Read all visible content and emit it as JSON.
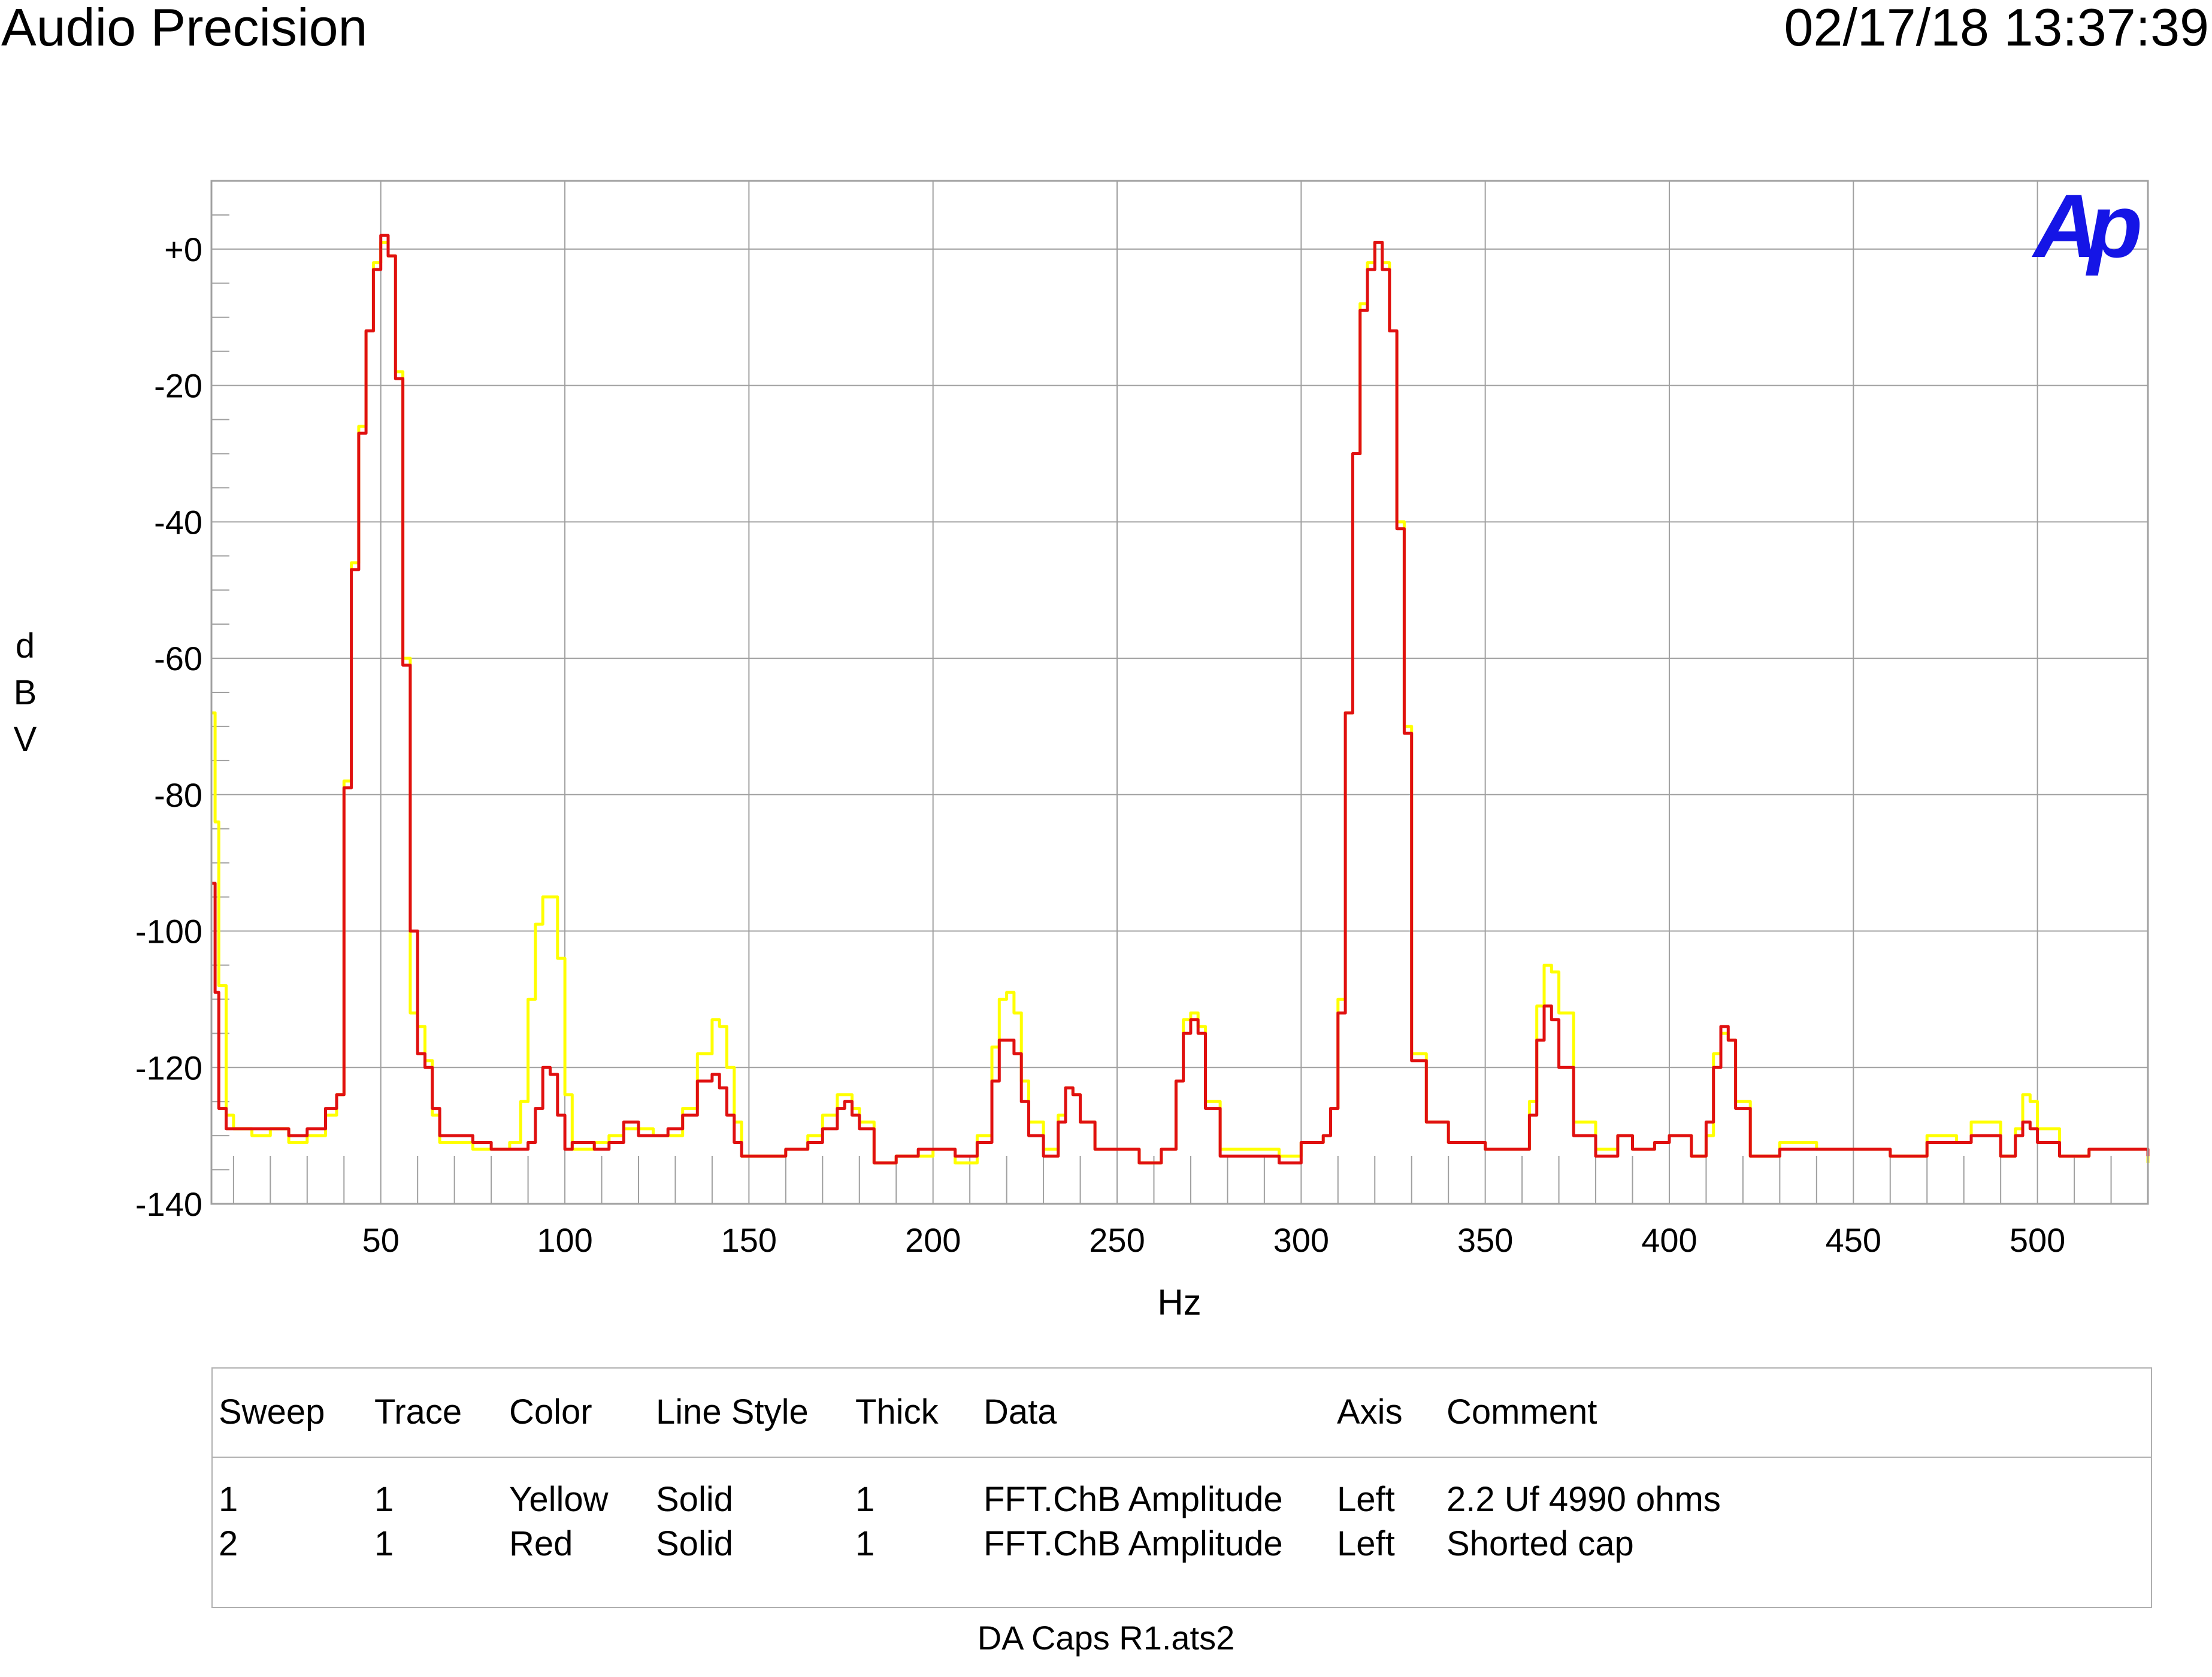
{
  "header": {
    "app_title": "Audio Precision",
    "timestamp": "02/17/18 13:37:39"
  },
  "logo_text": "Ap",
  "footer_filename": "DA Caps R1.ats2",
  "colors": {
    "background": "#ffffff",
    "grid": "#a0a0a0",
    "frame": "#a0a0a0",
    "yellow_trace": "#ffff00",
    "red_trace": "#e01010",
    "logo": "#1515e6"
  },
  "legend": {
    "headers": [
      "Sweep",
      "Trace",
      "Color",
      "Line Style",
      "Thick",
      "Data",
      "Axis",
      "Comment"
    ],
    "rows": [
      [
        "1",
        "1",
        "Yellow",
        "Solid",
        "1",
        "FFT.ChB Amplitude",
        "Left",
        "2.2 Uf 4990 ohms"
      ],
      [
        "2",
        "1",
        "Red",
        "Solid",
        "1",
        "FFT.ChB Amplitude",
        "Left",
        "Shorted cap"
      ]
    ]
  },
  "chart_data": {
    "type": "line",
    "xlabel": "Hz",
    "ylabel": "dBV",
    "xlim": [
      4,
      530
    ],
    "ylim": [
      -140,
      10
    ],
    "xticks": [
      50,
      100,
      150,
      200,
      250,
      300,
      350,
      400,
      450,
      500
    ],
    "xtick_labels": [
      "50",
      "100",
      "150",
      "200",
      "250",
      "300",
      "350",
      "400",
      "450",
      "500"
    ],
    "yticks": [
      0,
      -20,
      -40,
      -60,
      -80,
      -100,
      -120,
      -140
    ],
    "ytick_labels": [
      "+0",
      "-20",
      "-40",
      "-60",
      "-80",
      "-100",
      "-120",
      "-140"
    ],
    "grid": true,
    "series": [
      {
        "name": "2.2 Uf 4990 ohms",
        "color": "Yellow",
        "x": [
          4,
          5,
          6,
          8,
          10,
          15,
          20,
          25,
          30,
          35,
          38,
          40,
          42,
          44,
          46,
          48,
          50,
          52,
          54,
          56,
          58,
          60,
          62,
          64,
          66,
          70,
          75,
          80,
          85,
          88,
          90,
          92,
          94,
          96,
          98,
          100,
          102,
          104,
          108,
          112,
          116,
          120,
          124,
          128,
          132,
          136,
          140,
          142,
          144,
          146,
          148,
          152,
          160,
          166,
          170,
          174,
          176,
          178,
          180,
          184,
          190,
          196,
          200,
          206,
          212,
          216,
          218,
          220,
          222,
          224,
          226,
          230,
          234,
          236,
          238,
          240,
          244,
          250,
          256,
          262,
          266,
          268,
          270,
          272,
          274,
          278,
          286,
          294,
          300,
          306,
          308,
          310,
          312,
          314,
          316,
          318,
          320,
          322,
          324,
          326,
          328,
          330,
          334,
          340,
          350,
          358,
          362,
          364,
          366,
          368,
          370,
          374,
          380,
          386,
          390,
          396,
          400,
          406,
          410,
          412,
          414,
          416,
          418,
          422,
          430,
          440,
          450,
          460,
          470,
          478,
          482,
          490,
          494,
          496,
          498,
          500,
          506,
          514,
          522,
          530
        ],
        "values": [
          -68,
          -84,
          -108,
          -127,
          -129,
          -130,
          -129,
          -131,
          -130,
          -127,
          -124,
          -78,
          -46,
          -26,
          -12,
          -2,
          1,
          -1,
          -18,
          -60,
          -112,
          -114,
          -119,
          -127,
          -131,
          -131,
          -132,
          -132,
          -131,
          -125,
          -110,
          -99,
          -95,
          -95,
          -104,
          -124,
          -132,
          -132,
          -131,
          -130,
          -129,
          -129,
          -130,
          -130,
          -126,
          -118,
          -113,
          -114,
          -120,
          -128,
          -133,
          -133,
          -132,
          -130,
          -127,
          -124,
          -124,
          -126,
          -128,
          -134,
          -133,
          -133,
          -132,
          -134,
          -130,
          -117,
          -110,
          -109,
          -112,
          -122,
          -128,
          -132,
          -127,
          -123,
          -124,
          -128,
          -132,
          -132,
          -134,
          -132,
          -122,
          -113,
          -112,
          -114,
          -125,
          -132,
          -132,
          -133,
          -131,
          -130,
          -126,
          -110,
          -68,
          -30,
          -8,
          -2,
          1,
          -2,
          -12,
          -40,
          -70,
          -118,
          -128,
          -131,
          -132,
          -132,
          -125,
          -111,
          -105,
          -106,
          -112,
          -128,
          -132,
          -130,
          -132,
          -131,
          -130,
          -133,
          -130,
          -118,
          -115,
          -116,
          -125,
          -133,
          -131,
          -132,
          -132,
          -133,
          -130,
          -131,
          -128,
          -133,
          -129,
          -124,
          -125,
          -129,
          -133,
          -132,
          -132,
          -134
        ]
      },
      {
        "name": "Shorted cap",
        "color": "Red",
        "x": [
          4,
          5,
          6,
          8,
          10,
          15,
          20,
          25,
          30,
          35,
          38,
          40,
          42,
          44,
          46,
          48,
          50,
          52,
          54,
          56,
          58,
          60,
          62,
          64,
          66,
          70,
          75,
          80,
          85,
          88,
          90,
          92,
          94,
          96,
          98,
          100,
          102,
          104,
          108,
          112,
          116,
          120,
          124,
          128,
          132,
          136,
          140,
          142,
          144,
          146,
          148,
          152,
          160,
          166,
          170,
          174,
          176,
          178,
          180,
          184,
          190,
          196,
          200,
          206,
          212,
          216,
          218,
          220,
          222,
          224,
          226,
          230,
          234,
          236,
          238,
          240,
          244,
          250,
          256,
          262,
          266,
          268,
          270,
          272,
          274,
          278,
          286,
          294,
          300,
          306,
          308,
          310,
          312,
          314,
          316,
          318,
          320,
          322,
          324,
          326,
          328,
          330,
          334,
          340,
          350,
          358,
          362,
          364,
          366,
          368,
          370,
          374,
          380,
          386,
          390,
          396,
          400,
          406,
          410,
          412,
          414,
          416,
          418,
          422,
          430,
          440,
          450,
          460,
          470,
          478,
          482,
          490,
          494,
          496,
          498,
          500,
          506,
          514,
          522,
          530
        ],
        "values": [
          -93,
          -109,
          -126,
          -129,
          -129,
          -129,
          -129,
          -130,
          -129,
          -126,
          -124,
          -79,
          -47,
          -27,
          -12,
          -3,
          2,
          -1,
          -19,
          -61,
          -100,
          -118,
          -120,
          -126,
          -130,
          -130,
          -131,
          -132,
          -132,
          -132,
          -131,
          -126,
          -120,
          -121,
          -127,
          -132,
          -131,
          -131,
          -132,
          -131,
          -128,
          -130,
          -130,
          -129,
          -127,
          -122,
          -121,
          -123,
          -127,
          -131,
          -133,
          -133,
          -132,
          -131,
          -129,
          -126,
          -125,
          -127,
          -129,
          -134,
          -133,
          -132,
          -132,
          -133,
          -131,
          -122,
          -116,
          -116,
          -118,
          -125,
          -130,
          -133,
          -128,
          -123,
          -124,
          -128,
          -132,
          -132,
          -134,
          -132,
          -122,
          -115,
          -113,
          -115,
          -126,
          -133,
          -133,
          -134,
          -131,
          -130,
          -126,
          -112,
          -68,
          -30,
          -9,
          -3,
          1,
          -3,
          -12,
          -41,
          -71,
          -119,
          -128,
          -131,
          -132,
          -132,
          -127,
          -116,
          -111,
          -113,
          -120,
          -130,
          -133,
          -130,
          -132,
          -131,
          -130,
          -133,
          -128,
          -120,
          -114,
          -116,
          -126,
          -133,
          -132,
          -132,
          -132,
          -133,
          -131,
          -131,
          -130,
          -133,
          -130,
          -128,
          -129,
          -131,
          -133,
          -132,
          -132,
          -133
        ]
      }
    ]
  }
}
